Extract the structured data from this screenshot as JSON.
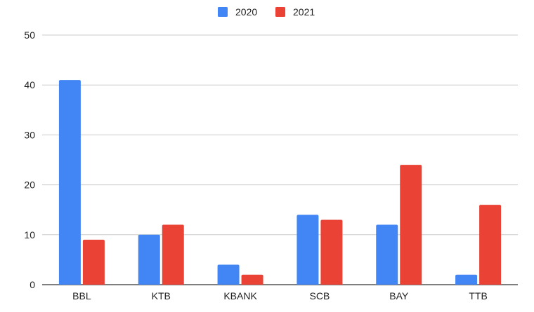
{
  "chart_data": {
    "type": "bar",
    "categories": [
      "BBL",
      "KTB",
      "KBANK",
      "SCB",
      "BAY",
      "TTB"
    ],
    "series": [
      {
        "name": "2020",
        "values": [
          41,
          10,
          4,
          14,
          12,
          2
        ],
        "color": "#4285f4"
      },
      {
        "name": "2021",
        "values": [
          9,
          12,
          2,
          13,
          24,
          16
        ],
        "color": "#ea4335"
      }
    ],
    "ylim": [
      0,
      50
    ],
    "yticks": [
      0,
      10,
      20,
      30,
      40,
      50
    ],
    "grid": true,
    "legend_position": "top-center",
    "title": "",
    "xlabel": "",
    "ylabel": ""
  }
}
